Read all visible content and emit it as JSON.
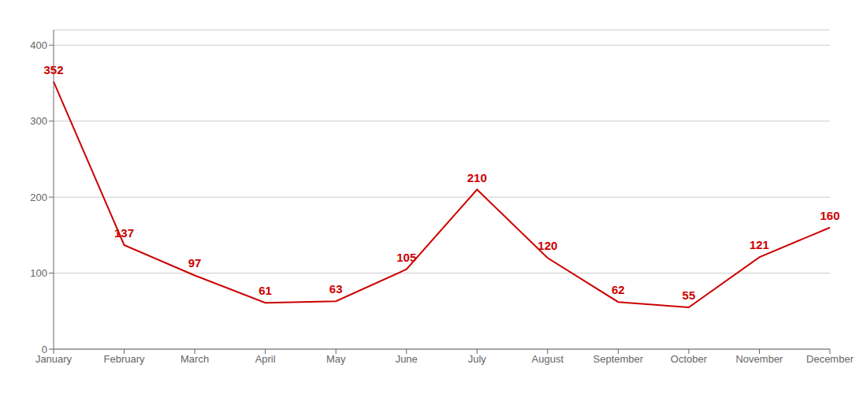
{
  "chart_data": {
    "type": "line",
    "categories": [
      "January",
      "February",
      "March",
      "April",
      "May",
      "June",
      "July",
      "August",
      "September",
      "October",
      "November",
      "December"
    ],
    "values": [
      352,
      137,
      97,
      61,
      63,
      105,
      210,
      120,
      62,
      55,
      121,
      160
    ],
    "color": "#cc0000",
    "ylim": [
      0,
      420
    ],
    "yticks": [
      0,
      100,
      200,
      300,
      400
    ],
    "grid": true,
    "data_labels": true
  }
}
